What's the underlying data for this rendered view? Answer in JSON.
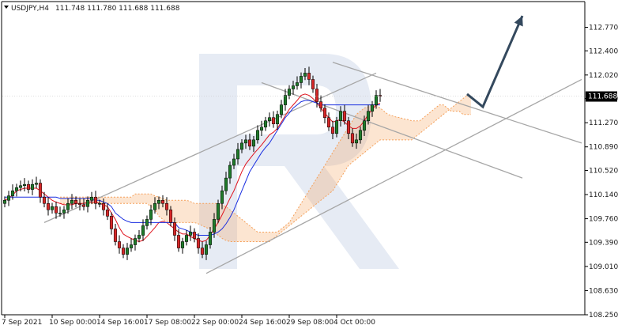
{
  "header": {
    "symbol_timeframe": "USDJPY,H4",
    "ohlc": "111.748 111.780 111.688 111.688"
  },
  "current_price_label": "111.688",
  "colors": {
    "bull": "#1f7a2a",
    "bear": "#d62728",
    "tenkan": "#e0141e",
    "kijun": "#1a2fe0",
    "cloud": "#f5a05a",
    "channel": "#a6a6a6",
    "arrow": "#34495e",
    "watermark": "#e6ebf4"
  },
  "chart_data": {
    "type": "candlestick",
    "title": "USDJPY,H4",
    "ylim": [
      108.25,
      113.05
    ],
    "y_ticks": [
      "112.770",
      "112.400",
      "112.020",
      "111.650",
      "111.270",
      "110.890",
      "110.520",
      "110.140",
      "109.760",
      "109.390",
      "109.010",
      "108.630",
      "108.250"
    ],
    "x_ticks": [
      "7 Sep 2021",
      "10 Sep 00:00",
      "14 Sep 16:00",
      "17 Sep 08:00",
      "22 Sep 00:00",
      "24 Sep 16:00",
      "29 Sep 08:00",
      "4 Oct 00:00"
    ],
    "current_price": 111.688,
    "closes": [
      110.05,
      110.12,
      110.2,
      110.25,
      110.28,
      110.3,
      110.22,
      110.3,
      110.32,
      110.1,
      110.0,
      109.9,
      109.95,
      109.85,
      109.85,
      109.9,
      110.0,
      110.05,
      110.0,
      109.98,
      109.95,
      110.05,
      110.1,
      110.0,
      110.0,
      109.9,
      109.8,
      109.6,
      109.4,
      109.3,
      109.2,
      109.3,
      109.35,
      109.45,
      109.5,
      109.65,
      109.75,
      109.9,
      110.0,
      110.05,
      110.0,
      109.9,
      109.7,
      109.5,
      109.3,
      109.4,
      109.5,
      109.55,
      109.45,
      109.3,
      109.2,
      109.35,
      109.55,
      109.75,
      110.0,
      110.2,
      110.4,
      110.6,
      110.7,
      110.85,
      110.95,
      111.0,
      110.9,
      111.0,
      111.15,
      111.2,
      111.3,
      111.35,
      111.25,
      111.4,
      111.55,
      111.7,
      111.8,
      111.85,
      111.9,
      112.0,
      112.05,
      111.95,
      111.8,
      111.6,
      111.5,
      111.35,
      111.2,
      111.1,
      111.3,
      111.45,
      111.3,
      111.1,
      110.95,
      111.0,
      111.15,
      111.3,
      111.45,
      111.55,
      111.7,
      111.688
    ],
    "series": [
      {
        "name": "Tenkan-sen",
        "values": [
          110.05,
          110.08,
          110.13,
          110.2,
          110.22,
          110.24,
          110.24,
          110.24,
          110.24,
          110.2,
          110.15,
          110.1,
          110.05,
          110.02,
          110.0,
          109.98,
          109.98,
          109.98,
          110.0,
          110.0,
          110.0,
          110.02,
          110.02,
          110.02,
          110.0,
          109.98,
          109.95,
          109.85,
          109.75,
          109.62,
          109.52,
          109.48,
          109.45,
          109.42,
          109.4,
          109.42,
          109.48,
          109.55,
          109.62,
          109.7,
          109.72,
          109.7,
          109.65,
          109.6,
          109.55,
          109.52,
          109.52,
          109.48,
          109.45,
          109.42,
          109.4,
          109.42,
          109.5,
          109.6,
          109.7,
          109.82,
          109.95,
          110.08,
          110.2,
          110.35,
          110.5,
          110.62,
          110.7,
          110.78,
          110.85,
          110.92,
          111.0,
          111.08,
          111.12,
          111.18,
          111.28,
          111.38,
          111.48,
          111.55,
          111.62,
          111.7,
          111.72,
          111.7,
          111.65,
          111.58,
          111.5,
          111.42,
          111.35,
          111.28,
          111.3,
          111.32,
          111.28,
          111.22,
          111.18,
          111.18,
          111.22,
          111.3,
          111.4,
          111.48,
          111.55,
          111.58
        ]
      },
      {
        "name": "Kijun-sen",
        "values": [
          110.1,
          110.1,
          110.1,
          110.1,
          110.1,
          110.1,
          110.1,
          110.1,
          110.1,
          110.1,
          110.1,
          110.1,
          110.1,
          110.1,
          110.08,
          110.08,
          110.08,
          110.08,
          110.08,
          110.08,
          110.08,
          110.08,
          110.08,
          110.05,
          110.05,
          110.02,
          110.0,
          109.95,
          109.85,
          109.8,
          109.75,
          109.72,
          109.7,
          109.7,
          109.7,
          109.7,
          109.7,
          109.7,
          109.7,
          109.7,
          109.7,
          109.7,
          109.7,
          109.7,
          109.62,
          109.6,
          109.58,
          109.55,
          109.52,
          109.5,
          109.5,
          109.5,
          109.5,
          109.52,
          109.55,
          109.6,
          109.68,
          109.78,
          109.9,
          110.05,
          110.2,
          110.35,
          110.5,
          110.6,
          110.7,
          110.8,
          110.88,
          110.95,
          111.05,
          111.15,
          111.25,
          111.35,
          111.42,
          111.5,
          111.55,
          111.6,
          111.62,
          111.62,
          111.6,
          111.58,
          111.55,
          111.55,
          111.55,
          111.55,
          111.55,
          111.55,
          111.55,
          111.55,
          111.55,
          111.55,
          111.55,
          111.55,
          111.55,
          111.55,
          111.55,
          111.55
        ]
      },
      {
        "name": "Senkou Span A",
        "values": [
          110.1,
          110.1,
          110.1,
          110.1,
          110.1,
          110.1,
          110.1,
          110.1,
          110.1,
          110.1,
          110.1,
          110.1,
          110.1,
          110.1,
          110.1,
          110.1,
          110.1,
          110.1,
          110.1,
          110.15,
          110.15,
          110.15,
          110.15,
          110.15,
          110.12,
          110.1,
          110.08,
          110.05,
          110.05,
          110.05,
          110.05,
          110.05,
          110.05,
          110.03,
          110.0,
          110.0,
          110.0,
          110.0,
          110.0,
          110.0,
          110.0,
          109.98,
          109.95,
          109.9,
          109.85,
          109.8,
          109.75,
          109.7,
          109.65,
          109.6,
          109.55,
          109.55,
          109.55,
          109.55,
          109.55,
          109.55,
          109.6,
          109.65,
          109.7,
          109.8,
          109.9,
          110.0,
          110.1,
          110.2,
          110.3,
          110.4,
          110.5,
          110.6,
          110.7,
          110.8,
          110.9,
          111.0,
          111.1,
          111.2,
          111.3,
          111.4,
          111.45,
          111.5,
          111.52,
          111.55,
          111.55,
          111.5,
          111.45,
          111.4,
          111.38,
          111.36,
          111.35,
          111.33,
          111.32,
          111.3,
          111.3,
          111.3,
          111.35,
          111.4,
          111.45,
          111.5,
          111.55,
          111.55,
          111.5,
          111.45,
          111.45,
          111.45,
          111.4,
          111.4,
          111.4
        ]
      },
      {
        "name": "Senkou Span B",
        "values": [
          110.0,
          110.0,
          110.0,
          110.0,
          110.0,
          110.0,
          110.0,
          110.0,
          110.0,
          110.0,
          110.0,
          110.0,
          110.0,
          110.0,
          110.0,
          110.0,
          110.0,
          110.0,
          110.0,
          110.0,
          110.0,
          110.0,
          110.0,
          109.95,
          109.9,
          109.8,
          109.75,
          109.72,
          109.7,
          109.7,
          109.7,
          109.7,
          109.7,
          109.7,
          109.7,
          109.68,
          109.65,
          109.62,
          109.6,
          109.55,
          109.5,
          109.45,
          109.42,
          109.4,
          109.4,
          109.4,
          109.4,
          109.4,
          109.4,
          109.4,
          109.4,
          109.4,
          109.4,
          109.4,
          109.45,
          109.5,
          109.55,
          109.6,
          109.65,
          109.7,
          109.75,
          109.8,
          109.85,
          109.9,
          109.95,
          110.0,
          110.05,
          110.1,
          110.15,
          110.2,
          110.3,
          110.4,
          110.5,
          110.6,
          110.65,
          110.7,
          110.75,
          110.8,
          110.85,
          110.9,
          110.95,
          111.0,
          111.0,
          111.0,
          111.0,
          111.0,
          111.0,
          111.0,
          111.0,
          111.0,
          111.05,
          111.1,
          111.15,
          111.2,
          111.25,
          111.3,
          111.35,
          111.4,
          111.45,
          111.5,
          111.55,
          111.6,
          111.65,
          111.7,
          111.7
        ]
      }
    ],
    "channel_lines": [
      {
        "name": "rising-channel-upper",
        "from": [
          10,
          109.7
        ],
        "to": [
          94,
          112.05
        ]
      },
      {
        "name": "rising-channel-lower",
        "from": [
          51,
          108.9
        ],
        "to": [
          146,
          111.95
        ]
      },
      {
        "name": "falling-channel-upper",
        "from": [
          83,
          112.22
        ],
        "to": [
          146,
          110.95
        ]
      },
      {
        "name": "falling-channel-lower",
        "from": [
          65,
          111.9
        ],
        "to": [
          131,
          110.4
        ]
      }
    ],
    "forecast_arrow": [
      [
        117,
        111.72
      ],
      [
        121,
        111.52
      ],
      [
        131,
        112.95
      ]
    ]
  }
}
